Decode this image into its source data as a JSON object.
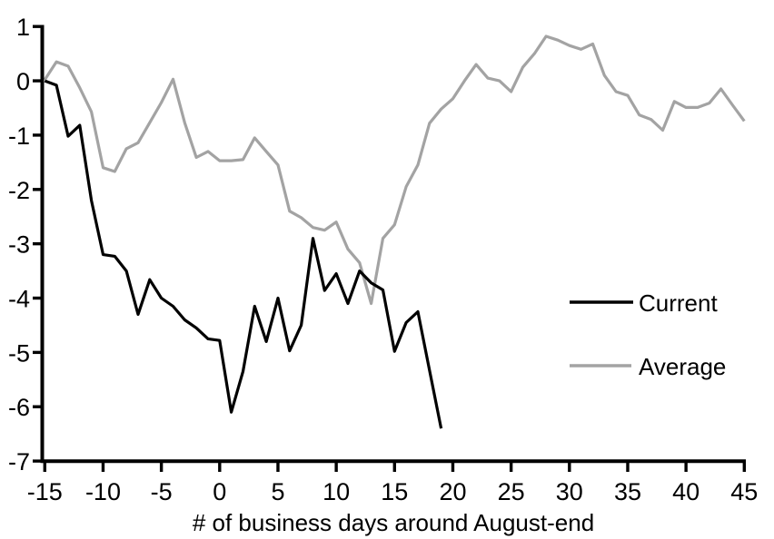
{
  "chart_data": {
    "type": "line",
    "title": "",
    "xlabel": "# of business days around August-end",
    "ylabel": "",
    "xlim": [
      -15,
      45
    ],
    "ylim": [
      -7,
      1
    ],
    "x_ticks": [
      -15,
      -10,
      -5,
      0,
      5,
      10,
      15,
      20,
      25,
      30,
      35,
      40,
      45
    ],
    "y_ticks": [
      1,
      0,
      -1,
      -2,
      -3,
      -4,
      -5,
      -6,
      -7
    ],
    "grid": false,
    "legend_position": "middle-right",
    "background_color": "#ffffff",
    "axis_color": "#000000",
    "series": [
      {
        "name": "Current",
        "color": "#000000",
        "x_start": -15,
        "x_step": 1,
        "values": [
          0.0,
          -0.08,
          -1.02,
          -0.82,
          -2.2,
          -3.2,
          -3.23,
          -3.5,
          -4.3,
          -3.66,
          -4.0,
          -4.15,
          -4.4,
          -4.55,
          -4.75,
          -4.78,
          -6.1,
          -5.35,
          -4.15,
          -4.8,
          -4.0,
          -4.97,
          -4.5,
          -2.9,
          -3.86,
          -3.55,
          -4.1,
          -3.5,
          -3.72,
          -3.85,
          -4.98,
          -4.45,
          -4.25,
          -5.33,
          -6.4
        ]
      },
      {
        "name": "Average",
        "color": "#a3a3a3",
        "x_start": -15,
        "x_step": 1,
        "values": [
          0.02,
          0.35,
          0.27,
          -0.13,
          -0.57,
          -1.6,
          -1.67,
          -1.25,
          -1.14,
          -0.77,
          -0.4,
          0.03,
          -0.77,
          -1.41,
          -1.3,
          -1.47,
          -1.47,
          -1.45,
          -1.05,
          -1.3,
          -1.55,
          -2.4,
          -2.52,
          -2.7,
          -2.75,
          -2.6,
          -3.1,
          -3.35,
          -4.1,
          -2.9,
          -2.65,
          -1.95,
          -1.55,
          -0.78,
          -0.52,
          -0.33,
          0.0,
          0.3,
          0.05,
          0.0,
          -0.2,
          0.25,
          0.5,
          0.82,
          0.75,
          0.65,
          0.58,
          0.68,
          0.1,
          -0.2,
          -0.27,
          -0.63,
          -0.71,
          -0.91,
          -0.38,
          -0.49,
          -0.49,
          -0.41,
          -0.15,
          -0.45,
          -0.74
        ]
      }
    ]
  }
}
